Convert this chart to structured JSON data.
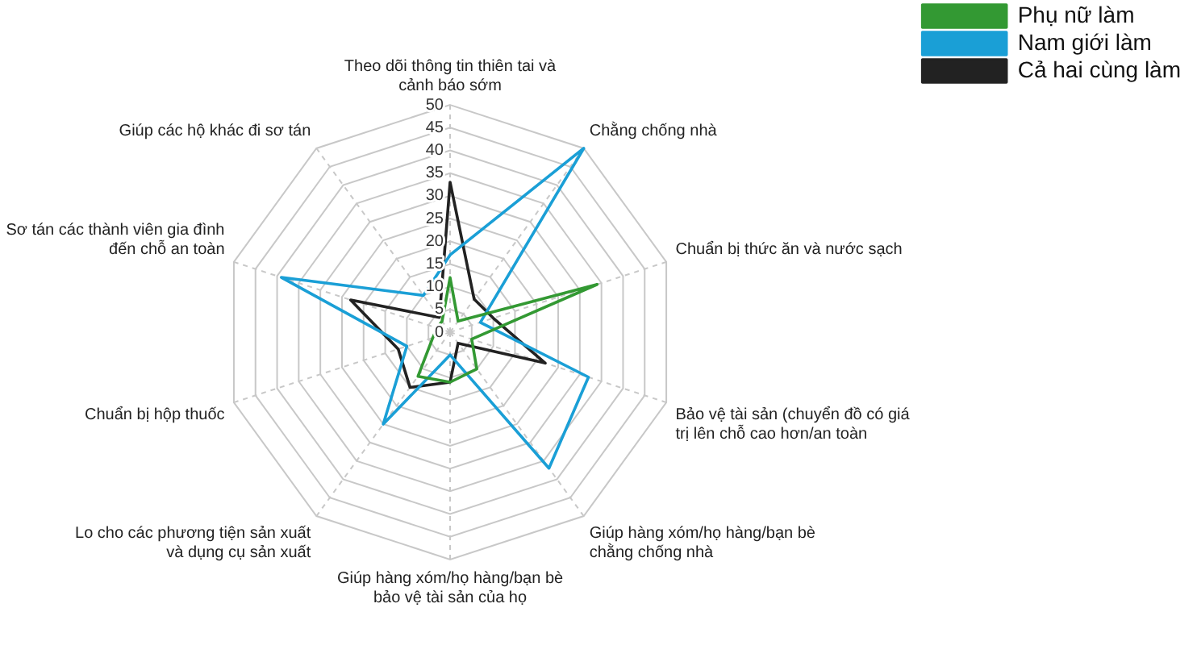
{
  "chart_data": {
    "type": "radar",
    "categories": [
      "Theo dõi thông tin thiên tai và\ncảnh báo sớm",
      "Chằng chống nhà",
      "Chuẩn bị thức ăn và nước sạch",
      "Bảo vệ tài sản (chuyển đồ có giá\ntrị lên chỗ cao hơn/an toàn",
      "Giúp hàng xóm/họ hàng/bạn bè\nchằng chống nhà",
      "Giúp hàng xóm/họ hàng/bạn bè\nbảo vệ tài sản của họ",
      "Lo cho các phương tiện sản xuất\nvà dụng cụ sản xuất",
      "Chuẩn bị hộp thuốc",
      "Sơ tán các thành viên gia đình\nđến chỗ an toàn",
      "Giúp các hộ khác đi sơ tán"
    ],
    "series": [
      {
        "name": "Phụ nữ làm",
        "color": "#339933",
        "values": [
          12,
          3,
          34,
          5,
          10,
          11,
          12,
          4,
          3,
          3
        ]
      },
      {
        "name": "Nam giới làm",
        "color": "#1a9fd6",
        "values": [
          17,
          50,
          7,
          32,
          37,
          5,
          25,
          10,
          39,
          10
        ]
      },
      {
        "name": "Cả hai cùng làm",
        "color": "#222222",
        "values": [
          33,
          9,
          10,
          22,
          3,
          11,
          15,
          12,
          23,
          4
        ]
      }
    ],
    "ylim": [
      0,
      50
    ],
    "yticks": [
      0,
      5,
      10,
      15,
      20,
      25,
      30,
      35,
      40,
      45,
      50
    ],
    "grid": true,
    "legend": "top right",
    "marker": "none"
  }
}
